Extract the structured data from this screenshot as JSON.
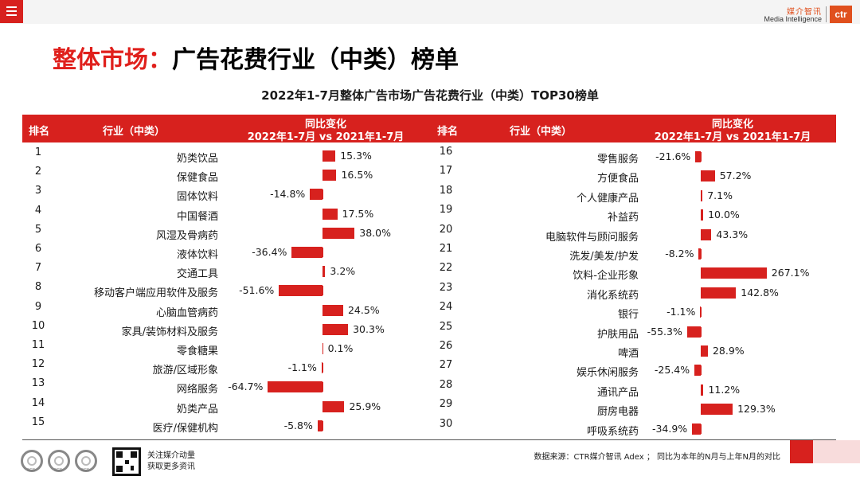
{
  "header": {
    "logo_cn": "媒介智讯",
    "logo_en": "Media Intelligence",
    "logo_badge": "ctr"
  },
  "title": {
    "prefix": "整体市场：",
    "main": "广告花费行业（中类）榜单"
  },
  "table_title": "2022年1-7月整体广告市场广告花费行业（中类）TOP30榜单",
  "columns": {
    "rank": "排名",
    "industry": "行业（中类）",
    "change_line1": "同比变化",
    "change_line2": "2022年1-7月 vs 2021年1-7月"
  },
  "rows": [
    {
      "rank": "1",
      "name": "奶类饮品",
      "value": 15.3,
      "label": "15.3%"
    },
    {
      "rank": "2",
      "name": "保健食品",
      "value": 16.5,
      "label": "16.5%"
    },
    {
      "rank": "3",
      "name": "固体饮料",
      "value": -14.8,
      "label": "-14.8%"
    },
    {
      "rank": "4",
      "name": "中国餐酒",
      "value": 17.5,
      "label": "17.5%"
    },
    {
      "rank": "5",
      "name": "风湿及骨病药",
      "value": 38.0,
      "label": "38.0%"
    },
    {
      "rank": "6",
      "name": "液体饮料",
      "value": -36.4,
      "label": "-36.4%"
    },
    {
      "rank": "7",
      "name": "交通工具",
      "value": 3.2,
      "label": "3.2%"
    },
    {
      "rank": "8",
      "name": "移动客户端应用软件及服务",
      "value": -51.6,
      "label": "-51.6%"
    },
    {
      "rank": "9",
      "name": "心脑血管病药",
      "value": 24.5,
      "label": "24.5%"
    },
    {
      "rank": "10",
      "name": "家具/装饰材料及服务",
      "value": 30.3,
      "label": "30.3%"
    },
    {
      "rank": "11",
      "name": "零食糖果",
      "value": 0.1,
      "label": "0.1%"
    },
    {
      "rank": "12",
      "name": "旅游/区域形象",
      "value": -1.1,
      "label": "-1.1%"
    },
    {
      "rank": "13",
      "name": "网络服务",
      "value": -64.7,
      "label": "-64.7%"
    },
    {
      "rank": "14",
      "name": "奶类产品",
      "value": 25.9,
      "label": "25.9%"
    },
    {
      "rank": "15",
      "name": "医疗/保健机构",
      "value": -5.8,
      "label": "-5.8%"
    },
    {
      "rank": "16",
      "name": "零售服务",
      "value": -21.6,
      "label": "-21.6%"
    },
    {
      "rank": "17",
      "name": "方便食品",
      "value": 57.2,
      "label": "57.2%"
    },
    {
      "rank": "18",
      "name": "个人健康产品",
      "value": 7.1,
      "label": "7.1%"
    },
    {
      "rank": "19",
      "name": "补益药",
      "value": 10.0,
      "label": "10.0%"
    },
    {
      "rank": "20",
      "name": "电脑软件与顾问服务",
      "value": 43.3,
      "label": "43.3%"
    },
    {
      "rank": "21",
      "name": "洗发/美发/护发",
      "value": -8.2,
      "label": "-8.2%"
    },
    {
      "rank": "22",
      "name": "饮料-企业形象",
      "value": 267.1,
      "label": "267.1%"
    },
    {
      "rank": "23",
      "name": "消化系统药",
      "value": 142.8,
      "label": "142.8%"
    },
    {
      "rank": "24",
      "name": "银行",
      "value": -1.1,
      "label": "-1.1%"
    },
    {
      "rank": "25",
      "name": "护肤用品",
      "value": -55.3,
      "label": "-55.3%"
    },
    {
      "rank": "26",
      "name": "啤酒",
      "value": 28.9,
      "label": "28.9%"
    },
    {
      "rank": "27",
      "name": "娱乐休闲服务",
      "value": -25.4,
      "label": "-25.4%"
    },
    {
      "rank": "28",
      "name": "通讯产品",
      "value": 11.2,
      "label": "11.2%"
    },
    {
      "rank": "29",
      "name": "厨房电器",
      "value": 129.3,
      "label": "129.3%"
    },
    {
      "rank": "30",
      "name": "呼吸系统药",
      "value": -34.9,
      "label": "-34.9%"
    }
  ],
  "footer": {
    "source": "数据来源：CTR媒介智讯 Adex ； 同比为本年的N月与上年N月的对比",
    "follow_line1": "关注媒介动量",
    "follow_line2": "获取更多资讯",
    "cert_mark": "SGS"
  },
  "colors": {
    "accent": "#d7211e",
    "brand": "#e0501e"
  }
}
